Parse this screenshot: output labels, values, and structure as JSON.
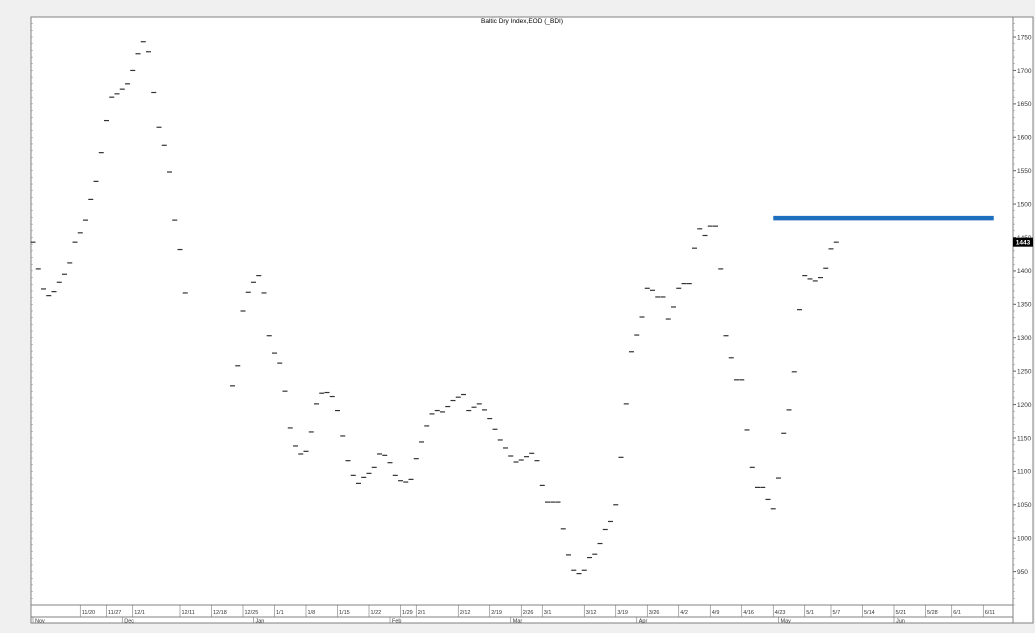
{
  "chart_data": {
    "type": "bar",
    "subtype": "ohlc-dash",
    "title": "Baltic Dry Index,EOD (_BDI)",
    "xlabel": "",
    "ylabel": "",
    "ylim": [
      900,
      1780
    ],
    "y_ticks": [
      950,
      1000,
      1050,
      1100,
      1150,
      1200,
      1250,
      1300,
      1350,
      1400,
      1450,
      1500,
      1550,
      1600,
      1650,
      1700,
      1750
    ],
    "y_tick_labels": [
      "950",
      "1000",
      "1050",
      "1100",
      "1150",
      "1200",
      "1250",
      "1300",
      "1350",
      "1400",
      "1450",
      "1500",
      "1550",
      "1600",
      "1650",
      "1700",
      "1750"
    ],
    "last_value_label": "1443",
    "last_value": 1443,
    "x_ticks": [
      {
        "i": 9,
        "label": "11/20"
      },
      {
        "i": 14,
        "label": "11/27"
      },
      {
        "i": 19,
        "label": "12/1"
      },
      {
        "i": 28,
        "label": "12/11"
      },
      {
        "i": 34,
        "label": "12/18"
      },
      {
        "i": 40,
        "label": "12/25"
      },
      {
        "i": 46,
        "label": "1/1"
      },
      {
        "i": 52,
        "label": "1/8"
      },
      {
        "i": 58,
        "label": "1/15"
      },
      {
        "i": 64,
        "label": "1/22"
      },
      {
        "i": 70,
        "label": "1/29"
      },
      {
        "i": 73,
        "label": "2/1"
      },
      {
        "i": 81,
        "label": "2/12"
      },
      {
        "i": 87,
        "label": "2/19"
      },
      {
        "i": 93,
        "label": "2/26"
      },
      {
        "i": 97,
        "label": "3/1"
      },
      {
        "i": 105,
        "label": "3/12"
      },
      {
        "i": 111,
        "label": "3/19"
      },
      {
        "i": 117,
        "label": "3/26"
      },
      {
        "i": 123,
        "label": "4/2"
      },
      {
        "i": 129,
        "label": "4/9"
      },
      {
        "i": 135,
        "label": "4/16"
      },
      {
        "i": 141,
        "label": "4/23"
      },
      {
        "i": 147,
        "label": "5/1"
      },
      {
        "i": 152,
        "label": "5/7"
      },
      {
        "i": 158,
        "label": "5/14"
      },
      {
        "i": 164,
        "label": "5/21"
      },
      {
        "i": 170,
        "label": "5/28"
      },
      {
        "i": 175,
        "label": "6/1"
      },
      {
        "i": 181,
        "label": "6/11"
      }
    ],
    "month_labels": [
      {
        "i": 0,
        "label": "Nov"
      },
      {
        "i": 17,
        "label": "Dec"
      },
      {
        "i": 42,
        "label": "Jan"
      },
      {
        "i": 68,
        "label": "Feb"
      },
      {
        "i": 91,
        "label": "Mar"
      },
      {
        "i": 115,
        "label": "Apr"
      },
      {
        "i": 142,
        "label": "May"
      },
      {
        "i": 164,
        "label": "Jun"
      }
    ],
    "values": [
      1443,
      1403,
      1373,
      1363,
      1369,
      1383,
      1395,
      1412,
      1443,
      1457,
      1476,
      1507,
      1534,
      1577,
      1625,
      1660,
      1665,
      1672,
      1680,
      1700,
      1725,
      1743,
      1728,
      1667,
      1615,
      1588,
      1548,
      1476,
      1432,
      1367,
      null,
      null,
      null,
      null,
      null,
      null,
      null,
      null,
      1228,
      1258,
      1340,
      1368,
      1383,
      1393,
      1367,
      1303,
      1277,
      1262,
      1220,
      1165,
      1138,
      1126,
      1130,
      1159,
      1201,
      1217,
      1218,
      1212,
      1191,
      1153,
      1116,
      1094,
      1082,
      1091,
      1097,
      1106,
      1126,
      1124,
      1113,
      1094,
      1086,
      1084,
      1088,
      1119,
      1144,
      1168,
      1186,
      1191,
      1189,
      1197,
      1206,
      1211,
      1215,
      1191,
      1196,
      1201,
      1192,
      1179,
      1163,
      1147,
      1135,
      1123,
      1114,
      1117,
      1122,
      1127,
      1116,
      1079,
      1054,
      1054,
      1054,
      1014,
      975,
      952,
      947,
      952,
      971,
      976,
      992,
      1013,
      1025,
      1050,
      1121,
      1201,
      1279,
      1304,
      1331,
      1374,
      1371,
      1361,
      1361,
      1328,
      1346,
      1374,
      1381,
      1381,
      1434,
      1463,
      1453,
      1467,
      1467,
      1403,
      1303,
      1270,
      1237,
      1237,
      1162,
      1106,
      1076,
      1076,
      1058,
      1044,
      1090,
      1157,
      1192,
      1249,
      1342,
      1393,
      1388,
      1385,
      1390,
      1404,
      1433,
      1443
    ],
    "annotations": [
      {
        "type": "horizontal-line",
        "value": 1479,
        "from_i": 141,
        "to_i": 183,
        "color": "#1f6fbf"
      }
    ],
    "grid": false,
    "legend": "none"
  },
  "colors": {
    "background": "#f0f0f0",
    "plot_background": "#ffffff",
    "bars": "#333333",
    "annotation": "#1f6fbf",
    "last_value_badge": "#000000"
  }
}
